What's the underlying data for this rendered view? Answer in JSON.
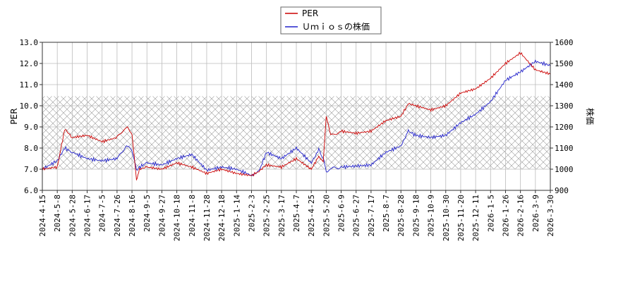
{
  "chart_data": {
    "type": "line",
    "title": "",
    "legend": {
      "placement": "top-center",
      "entries": [
        {
          "label": "PER",
          "color": "#cc0000"
        },
        {
          "label": "Ｕｍｉｏｓの株価",
          "color": "#2222cc"
        }
      ]
    },
    "y_left": {
      "label": "PER",
      "min": 6.0,
      "max": 13.0,
      "ticks": [
        "6.0",
        "7.0",
        "8.0",
        "9.0",
        "10.0",
        "11.0",
        "12.0",
        "13.0"
      ]
    },
    "y_right": {
      "label": "株価",
      "min": 900,
      "max": 1600,
      "ticks": [
        "900",
        "1000",
        "1100",
        "1200",
        "1300",
        "1400",
        "1500",
        "1600"
      ]
    },
    "x_ticks": [
      "2024-4-15",
      "2024-5-8",
      "2024-5-28",
      "2024-6-17",
      "2024-7-5",
      "2024-7-26",
      "2024-8-16",
      "2024-9-5",
      "2024-9-27",
      "2024-10-18",
      "2024-11-8",
      "2024-11-28",
      "2024-12-18",
      "2025-1-14",
      "2025-2-3",
      "2025-2-25",
      "2025-3-17",
      "2025-4-7",
      "2025-4-25",
      "2025-5-20",
      "2025-6-9",
      "2025-6-27",
      "2025-7-17",
      "2025-8-7",
      "2025-8-28",
      "2025-9-18",
      "2025-10-9",
      "2025-10-30",
      "2025-11-20",
      "2025-12-11",
      "2026-1-5",
      "2026-1-26",
      "2026-2-16",
      "2026-3-9",
      "2026-3-30"
    ],
    "grid": true,
    "shaded_band_per": [
      7.0,
      10.45
    ],
    "series": [
      {
        "name": "PER",
        "axis": "left",
        "color": "#cc0000",
        "points": [
          [
            0,
            7.0
          ],
          [
            1,
            7.1
          ],
          [
            1.5,
            8.9
          ],
          [
            2,
            8.5
          ],
          [
            3,
            8.6
          ],
          [
            4,
            8.3
          ],
          [
            5,
            8.5
          ],
          [
            5.7,
            9.0
          ],
          [
            6,
            8.7
          ],
          [
            6.3,
            6.5
          ],
          [
            6.5,
            7.0
          ],
          [
            7,
            7.1
          ],
          [
            8,
            7.0
          ],
          [
            9,
            7.3
          ],
          [
            10,
            7.1
          ],
          [
            11,
            6.8
          ],
          [
            12,
            7.0
          ],
          [
            13,
            6.8
          ],
          [
            14,
            6.7
          ],
          [
            14.5,
            6.9
          ],
          [
            15,
            7.2
          ],
          [
            16,
            7.1
          ],
          [
            17,
            7.5
          ],
          [
            18,
            7.0
          ],
          [
            18.5,
            7.6
          ],
          [
            18.8,
            7.3
          ],
          [
            19,
            9.5
          ],
          [
            19.3,
            8.6
          ],
          [
            20,
            8.8
          ],
          [
            21,
            8.7
          ],
          [
            22,
            8.8
          ],
          [
            23,
            9.3
          ],
          [
            24,
            9.5
          ],
          [
            24.5,
            10.1
          ],
          [
            25,
            10.0
          ],
          [
            26,
            9.8
          ],
          [
            27,
            10.0
          ],
          [
            28,
            10.6
          ],
          [
            29,
            10.8
          ],
          [
            30,
            11.3
          ],
          [
            31,
            12.0
          ],
          [
            32,
            12.5
          ],
          [
            33,
            11.7
          ],
          [
            34,
            11.5
          ],
          [
            35,
            11.2
          ]
        ]
      },
      {
        "name": "Ｕｍｉｏｓの株価",
        "axis": "right",
        "color": "#2222cc",
        "points": [
          [
            0,
            1000
          ],
          [
            1,
            1040
          ],
          [
            1.5,
            1100
          ],
          [
            2,
            1080
          ],
          [
            3,
            1050
          ],
          [
            4,
            1040
          ],
          [
            5,
            1050
          ],
          [
            5.7,
            1110
          ],
          [
            6,
            1090
          ],
          [
            6.3,
            990
          ],
          [
            6.5,
            1010
          ],
          [
            7,
            1030
          ],
          [
            8,
            1020
          ],
          [
            9,
            1050
          ],
          [
            10,
            1070
          ],
          [
            11,
            995
          ],
          [
            12,
            1010
          ],
          [
            13,
            1000
          ],
          [
            14,
            970
          ],
          [
            14.5,
            990
          ],
          [
            15,
            1080
          ],
          [
            16,
            1050
          ],
          [
            17,
            1100
          ],
          [
            18,
            1030
          ],
          [
            18.5,
            1090
          ],
          [
            18.8,
            1050
          ],
          [
            19,
            990
          ],
          [
            19.3,
            1000
          ],
          [
            20,
            1010
          ],
          [
            21,
            1015
          ],
          [
            22,
            1020
          ],
          [
            23,
            1080
          ],
          [
            24,
            1110
          ],
          [
            24.5,
            1180
          ],
          [
            25,
            1160
          ],
          [
            26,
            1150
          ],
          [
            27,
            1160
          ],
          [
            28,
            1220
          ],
          [
            29,
            1260
          ],
          [
            30,
            1320
          ],
          [
            31,
            1420
          ],
          [
            32,
            1460
          ],
          [
            33,
            1510
          ],
          [
            34,
            1490
          ],
          [
            35,
            1470
          ]
        ]
      }
    ]
  }
}
